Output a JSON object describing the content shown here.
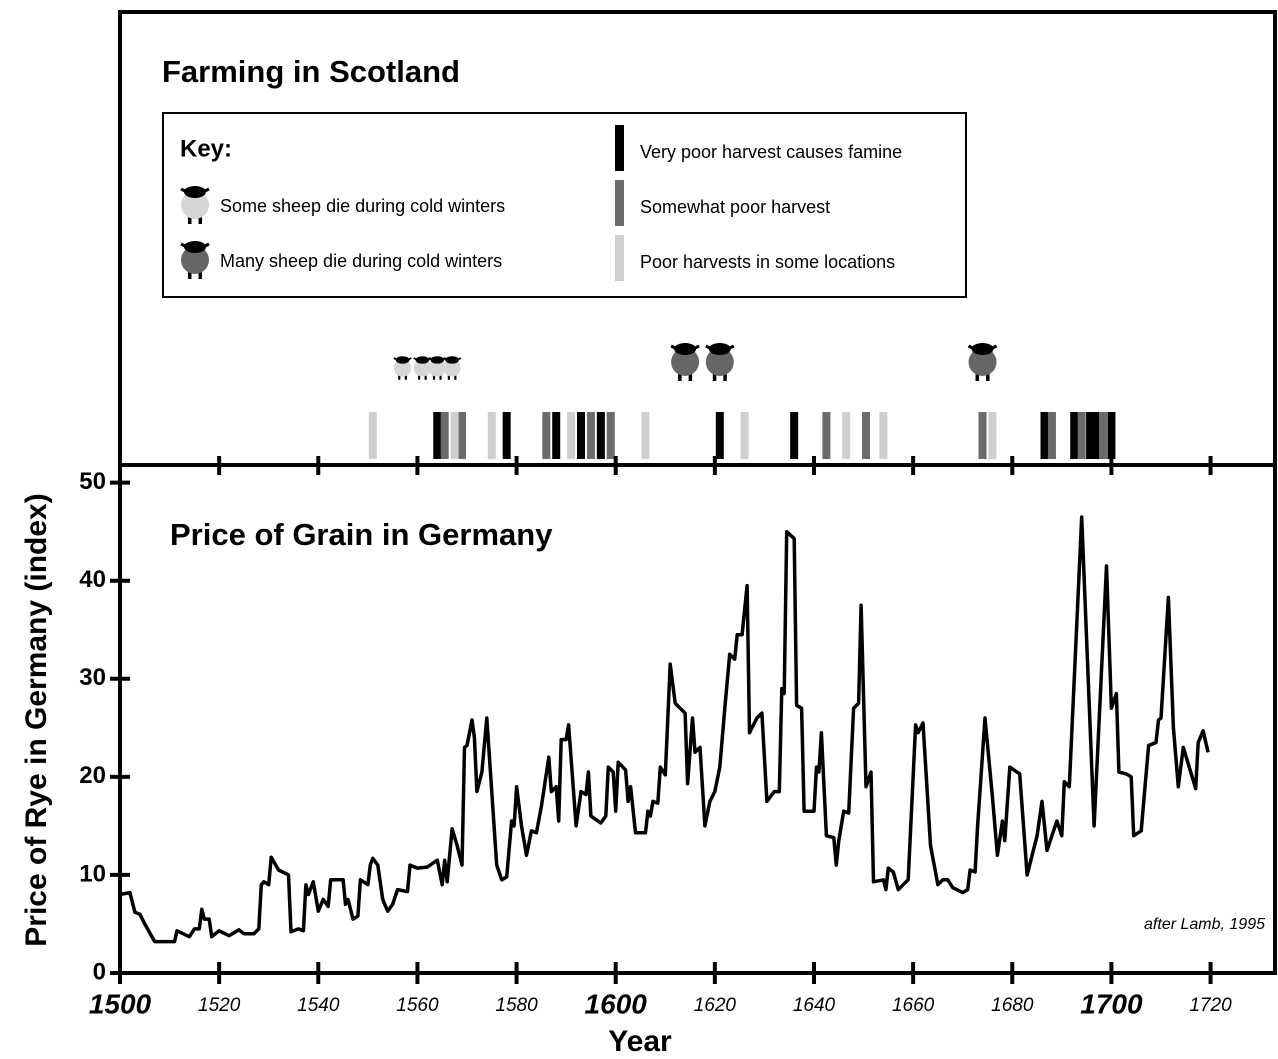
{
  "chart_data": [
    {
      "type": "timeline",
      "title": "Farming in Scotland",
      "legend_title": "Key:",
      "series": [
        {
          "name": "Some sheep die during cold winters",
          "marker": "sheep",
          "color": "#d6d6d6",
          "x": [
            1557,
            1561,
            1564,
            1567
          ]
        },
        {
          "name": "Many sheep die during cold winters",
          "marker": "sheep",
          "color": "#666666",
          "x": [
            1614,
            1621,
            1674
          ]
        },
        {
          "name": "Very poor harvest causes famine",
          "marker": "bar",
          "color": "#000000",
          "x": [
            1564,
            1578,
            1588,
            1593,
            1597,
            1621,
            1636,
            1686.5,
            1692.5,
            1695.7,
            1697,
            1700
          ]
        },
        {
          "name": "Somewhat poor harvest",
          "marker": "bar",
          "color": "#6b6b6b",
          "x": [
            1565.5,
            1569,
            1586,
            1595,
            1599,
            1642.5,
            1650.5,
            1674,
            1688,
            1694,
            1698.3
          ]
        },
        {
          "name": "Poor harvests in some locations",
          "marker": "bar",
          "color": "#cfcfcf",
          "x": [
            1551,
            1567.5,
            1575,
            1591,
            1606,
            1626,
            1646.5,
            1654,
            1676
          ]
        }
      ]
    },
    {
      "type": "line",
      "title": "Price of Grain in Germany",
      "xlabel": "Year",
      "ylabel": "Price of Rye in Germany (index)",
      "annotation": "after Lamb, 1995",
      "color": "#000000",
      "xlim": [
        1500,
        1733
      ],
      "xticks": [
        1500,
        1520,
        1540,
        1560,
        1580,
        1600,
        1620,
        1640,
        1660,
        1680,
        1700,
        1720
      ],
      "ylim": [
        0,
        51.8
      ],
      "yticks": [
        0,
        10,
        20,
        30,
        40,
        50
      ],
      "x": [
        1500,
        1502,
        1503,
        1504,
        1505,
        1507,
        1511,
        1511.5,
        1514,
        1515,
        1516,
        1516.5,
        1517,
        1518,
        1518.5,
        1520,
        1522,
        1524,
        1525,
        1527,
        1528,
        1528.5,
        1529,
        1530,
        1530.5,
        1532,
        1534,
        1534.5,
        1536,
        1537,
        1537.5,
        1538,
        1539,
        1540,
        1541,
        1542,
        1542.5,
        1544,
        1545,
        1545.5,
        1546,
        1547,
        1548,
        1548.5,
        1550,
        1550.5,
        1551,
        1552,
        1553,
        1554,
        1555,
        1556,
        1558,
        1558.5,
        1560,
        1562,
        1564,
        1565,
        1565.5,
        1566,
        1567,
        1568,
        1569,
        1569.5,
        1570,
        1571,
        1571.5,
        1572,
        1573,
        1574,
        1576,
        1577,
        1578,
        1579,
        1579.5,
        1580,
        1581,
        1582,
        1583,
        1584,
        1585,
        1586.5,
        1587,
        1588,
        1588.5,
        1589,
        1590,
        1590.5,
        1592,
        1593,
        1594,
        1594.5,
        1595,
        1597,
        1598,
        1598.5,
        1599.5,
        1600,
        1600.5,
        1602,
        1602.5,
        1603,
        1604,
        1606,
        1606.5,
        1607,
        1607.5,
        1608.5,
        1609,
        1610,
        1611,
        1612,
        1613,
        1614,
        1614.5,
        1615.5,
        1616,
        1617,
        1618,
        1619,
        1620,
        1621,
        1622,
        1623,
        1624,
        1624.5,
        1625.5,
        1626.5,
        1627,
        1628.5,
        1629.5,
        1630.5,
        1632,
        1633,
        1633.5,
        1634,
        1634.5,
        1636,
        1636.5,
        1637.5,
        1638,
        1640,
        1640.5,
        1641,
        1641.5,
        1642.5,
        1644,
        1644.5,
        1645,
        1646,
        1647,
        1648,
        1649,
        1649.5,
        1650.5,
        1651.5,
        1652,
        1654,
        1654.5,
        1655,
        1656,
        1657,
        1658,
        1659,
        1660.5,
        1661,
        1662,
        1663.5,
        1665,
        1666,
        1667,
        1668,
        1670,
        1671,
        1671.5,
        1672.5,
        1673,
        1674.5,
        1676,
        1677,
        1678,
        1678.5,
        1679.5,
        1681.5,
        1683,
        1685,
        1686,
        1687,
        1689,
        1690,
        1690.5,
        1691.5,
        1694,
        1696.5,
        1699,
        1700,
        1701,
        1701.5,
        1703,
        1704,
        1704.5,
        1706,
        1707.5,
        1709,
        1709.5,
        1710,
        1711.5,
        1712.5,
        1713.5,
        1714.5,
        1716,
        1717,
        1717.5,
        1718.5,
        1719.5
      ],
      "values": [
        8,
        8.2,
        6.2,
        6,
        5,
        3.2,
        3.2,
        4.3,
        3.7,
        4.5,
        4.5,
        6.5,
        5.5,
        5.5,
        3.7,
        4.3,
        3.8,
        4.4,
        4,
        4,
        4.5,
        9,
        9.3,
        9,
        11.8,
        10.5,
        10,
        4.2,
        4.5,
        4.3,
        9,
        8,
        9.3,
        6.3,
        7.5,
        6.8,
        9.5,
        9.5,
        9.5,
        7,
        7.5,
        5.5,
        5.8,
        9.5,
        9,
        11,
        11.7,
        11,
        7.5,
        6.3,
        7,
        8.5,
        8.3,
        11,
        10.7,
        10.8,
        11.5,
        9,
        11.5,
        9.3,
        14.7,
        13,
        11,
        23,
        23.2,
        25.8,
        24,
        18.5,
        20.5,
        26,
        11,
        9.5,
        9.8,
        15.5,
        15,
        19,
        15,
        12,
        14.5,
        14.3,
        17,
        22,
        18.5,
        19,
        15.5,
        23.8,
        23.8,
        25.3,
        15,
        18.5,
        18.2,
        20.5,
        16,
        15.3,
        16,
        21,
        20.5,
        16.5,
        21.5,
        20.7,
        17.5,
        19,
        14.3,
        14.3,
        16.5,
        16,
        17.5,
        17.3,
        21,
        20.2,
        31.5,
        27.5,
        27,
        26.5,
        19.3,
        26,
        22.5,
        23,
        15,
        17.5,
        18.5,
        21,
        27,
        32.5,
        32,
        34.5,
        34.5,
        39.5,
        24.5,
        26,
        26.5,
        17.5,
        18.5,
        18.5,
        29,
        28.5,
        45,
        44.3,
        27.3,
        27,
        16.5,
        16.5,
        21,
        20.5,
        24.5,
        14,
        13.8,
        11,
        13.5,
        16.5,
        16.3,
        27,
        27.5,
        37.5,
        19,
        20.5,
        9.3,
        9.5,
        8.5,
        10.7,
        10.3,
        8.5,
        9,
        9.5,
        25.3,
        24.5,
        25.5,
        13,
        9,
        9.5,
        9.5,
        8.7,
        8.2,
        8.5,
        10.5,
        10.3,
        15,
        26,
        18,
        12,
        15.5,
        13.5,
        21,
        20.3,
        10,
        14,
        17.5,
        12.5,
        15.5,
        14,
        19.5,
        19,
        46.5,
        15,
        41.5,
        27,
        28.5,
        20.5,
        20.3,
        20,
        14,
        14.5,
        23.2,
        23.5,
        25.8,
        26,
        38.3,
        25,
        19,
        23,
        20.5,
        18.8,
        23.5,
        24.7,
        22.5
      ]
    }
  ]
}
